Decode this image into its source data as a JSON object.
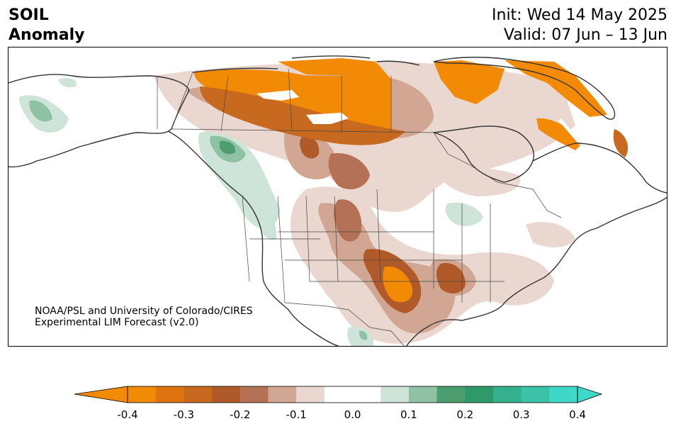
{
  "title": {
    "line1": "SOIL",
    "line2": "Anomaly"
  },
  "forecast": {
    "init": "Init: Wed 14 May 2025",
    "valid": "Valid: 07 Jun – 13 Jun"
  },
  "credit": {
    "line1": "NOAA/PSL and University of Colorado/CIRES",
    "line2": "Experimental LIM Forecast (v2.0)"
  },
  "colorbar": {
    "ticks": [
      "-0.4",
      "-0.3",
      "-0.2",
      "-0.1",
      "0.0",
      "0.1",
      "0.2",
      "0.3",
      "0.4"
    ],
    "colors": [
      "#f28a06",
      "#dd7410",
      "#c76a1f",
      "#b05a2a",
      "#b57155",
      "#d1a793",
      "#ead7cf",
      "#ffffff",
      "#ffffff",
      "#cfe4d8",
      "#8fc2a4",
      "#4c9e70",
      "#2e9a6a",
      "#35b08c",
      "#3cc2a6",
      "#3fd8c8"
    ],
    "under_color": "#f28a06",
    "over_color": "#3fd8c8"
  }
}
